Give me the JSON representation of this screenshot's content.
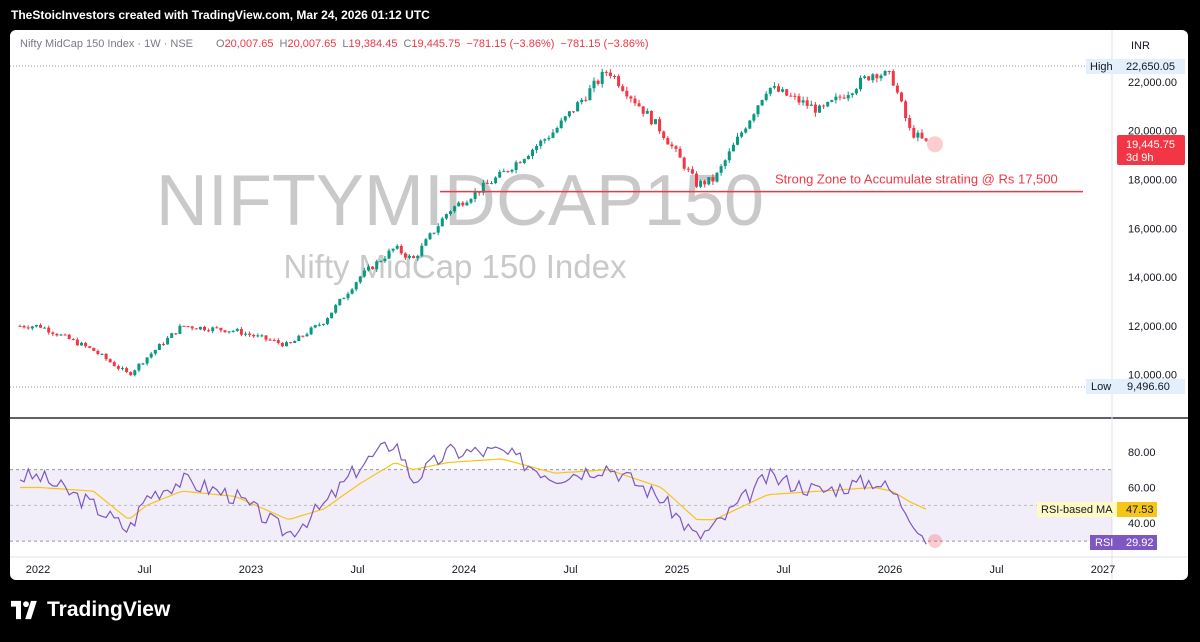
{
  "header": {
    "credit": "TheStoicInvestors created with TradingView.com, Mar 24, 2026 01:12 UTC"
  },
  "legend": {
    "symbol": "Nifty MidCap 150 Index · 1W · NSE",
    "o_label": "O",
    "o_value": "20,007.65",
    "h_label": "H",
    "h_value": "20,007.65",
    "l_label": "L",
    "l_value": "19,384.45",
    "c_label": "C",
    "c_value": "19,445.75",
    "change": "−781.15 (−3.86%)",
    "change2": "−781.15 (−3.86%)"
  },
  "watermark": {
    "ticker": "NIFTYMIDCAP150",
    "name": "Nifty MidCap 150 Index"
  },
  "price_axis": {
    "currency": "INR",
    "ticks": [
      "22,000.00",
      "20,000.00",
      "18,000.00",
      "16,000.00",
      "14,000.00",
      "12,000.00",
      "10,000.00"
    ],
    "high_label": "High",
    "high_value": "22,650.05",
    "low_label": "Low",
    "low_value": "9,496.60",
    "last_price": "19,445.75",
    "countdown": "3d 9h"
  },
  "rsi_axis": {
    "ticks": [
      "80.00",
      "60.00",
      "40.00"
    ],
    "ma_label": "RSI-based MA",
    "ma_value": "47.53",
    "rsi_label": "RSI",
    "rsi_value": "29.92"
  },
  "time_axis": {
    "labels": [
      "2022",
      "Jul",
      "2023",
      "Jul",
      "2024",
      "Jul",
      "2025",
      "Jul",
      "2026",
      "Jul",
      "2027"
    ]
  },
  "annotation": {
    "text": "Strong Zone to Accumulate strating @ Rs 17,500",
    "level": 17500
  },
  "colors": {
    "up": "#089981",
    "down": "#f23645",
    "rsi": "#7e57c2",
    "rsi_ma": "#f5c518",
    "zone": "#f23645"
  },
  "chart_data": [
    {
      "type": "line",
      "title": "Nifty MidCap 150 Index · 1W · NSE",
      "note": "weekly close path (approximate, read from candles)",
      "x": [
        "2022-01",
        "2022-04",
        "2022-06",
        "2022-07",
        "2022-09",
        "2022-12",
        "2023-03",
        "2023-05",
        "2023-07",
        "2023-09",
        "2023-10",
        "2023-12",
        "2024-03",
        "2024-06",
        "2024-09",
        "2024-12",
        "2025-02",
        "2025-03",
        "2025-06",
        "2025-09",
        "2025-12",
        "2026-01",
        "2026-02",
        "2026-03"
      ],
      "values": [
        12000,
        11000,
        10000,
        10700,
        12000,
        11800,
        11200,
        12200,
        14000,
        15200,
        14700,
        16700,
        18200,
        20000,
        22500,
        20000,
        17800,
        18000,
        21800,
        20800,
        22400,
        22200,
        20000,
        19446
      ],
      "ylim": [
        9496.6,
        22650.05
      ],
      "yticks": [
        10000,
        12000,
        14000,
        16000,
        18000,
        20000,
        22000
      ],
      "high": 22650.05,
      "low": 9496.6,
      "last": 19445.75
    },
    {
      "type": "line",
      "title": "RSI",
      "series": [
        {
          "name": "RSI",
          "values": [
            66,
            50,
            36,
            55,
            64,
            55,
            34,
            50,
            72,
            86,
            64,
            80,
            80,
            66,
            72,
            54,
            32,
            38,
            66,
            58,
            64,
            58,
            45,
            30
          ]
        },
        {
          "name": "RSI-based MA",
          "values": [
            60,
            58,
            42,
            50,
            58,
            55,
            42,
            48,
            62,
            74,
            70,
            74,
            76,
            68,
            70,
            60,
            42,
            42,
            56,
            58,
            60,
            58,
            52,
            47.53
          ]
        }
      ],
      "ylim": [
        25,
        95
      ],
      "yticks": [
        40,
        60,
        80
      ],
      "bands": [
        30,
        70
      ]
    }
  ]
}
